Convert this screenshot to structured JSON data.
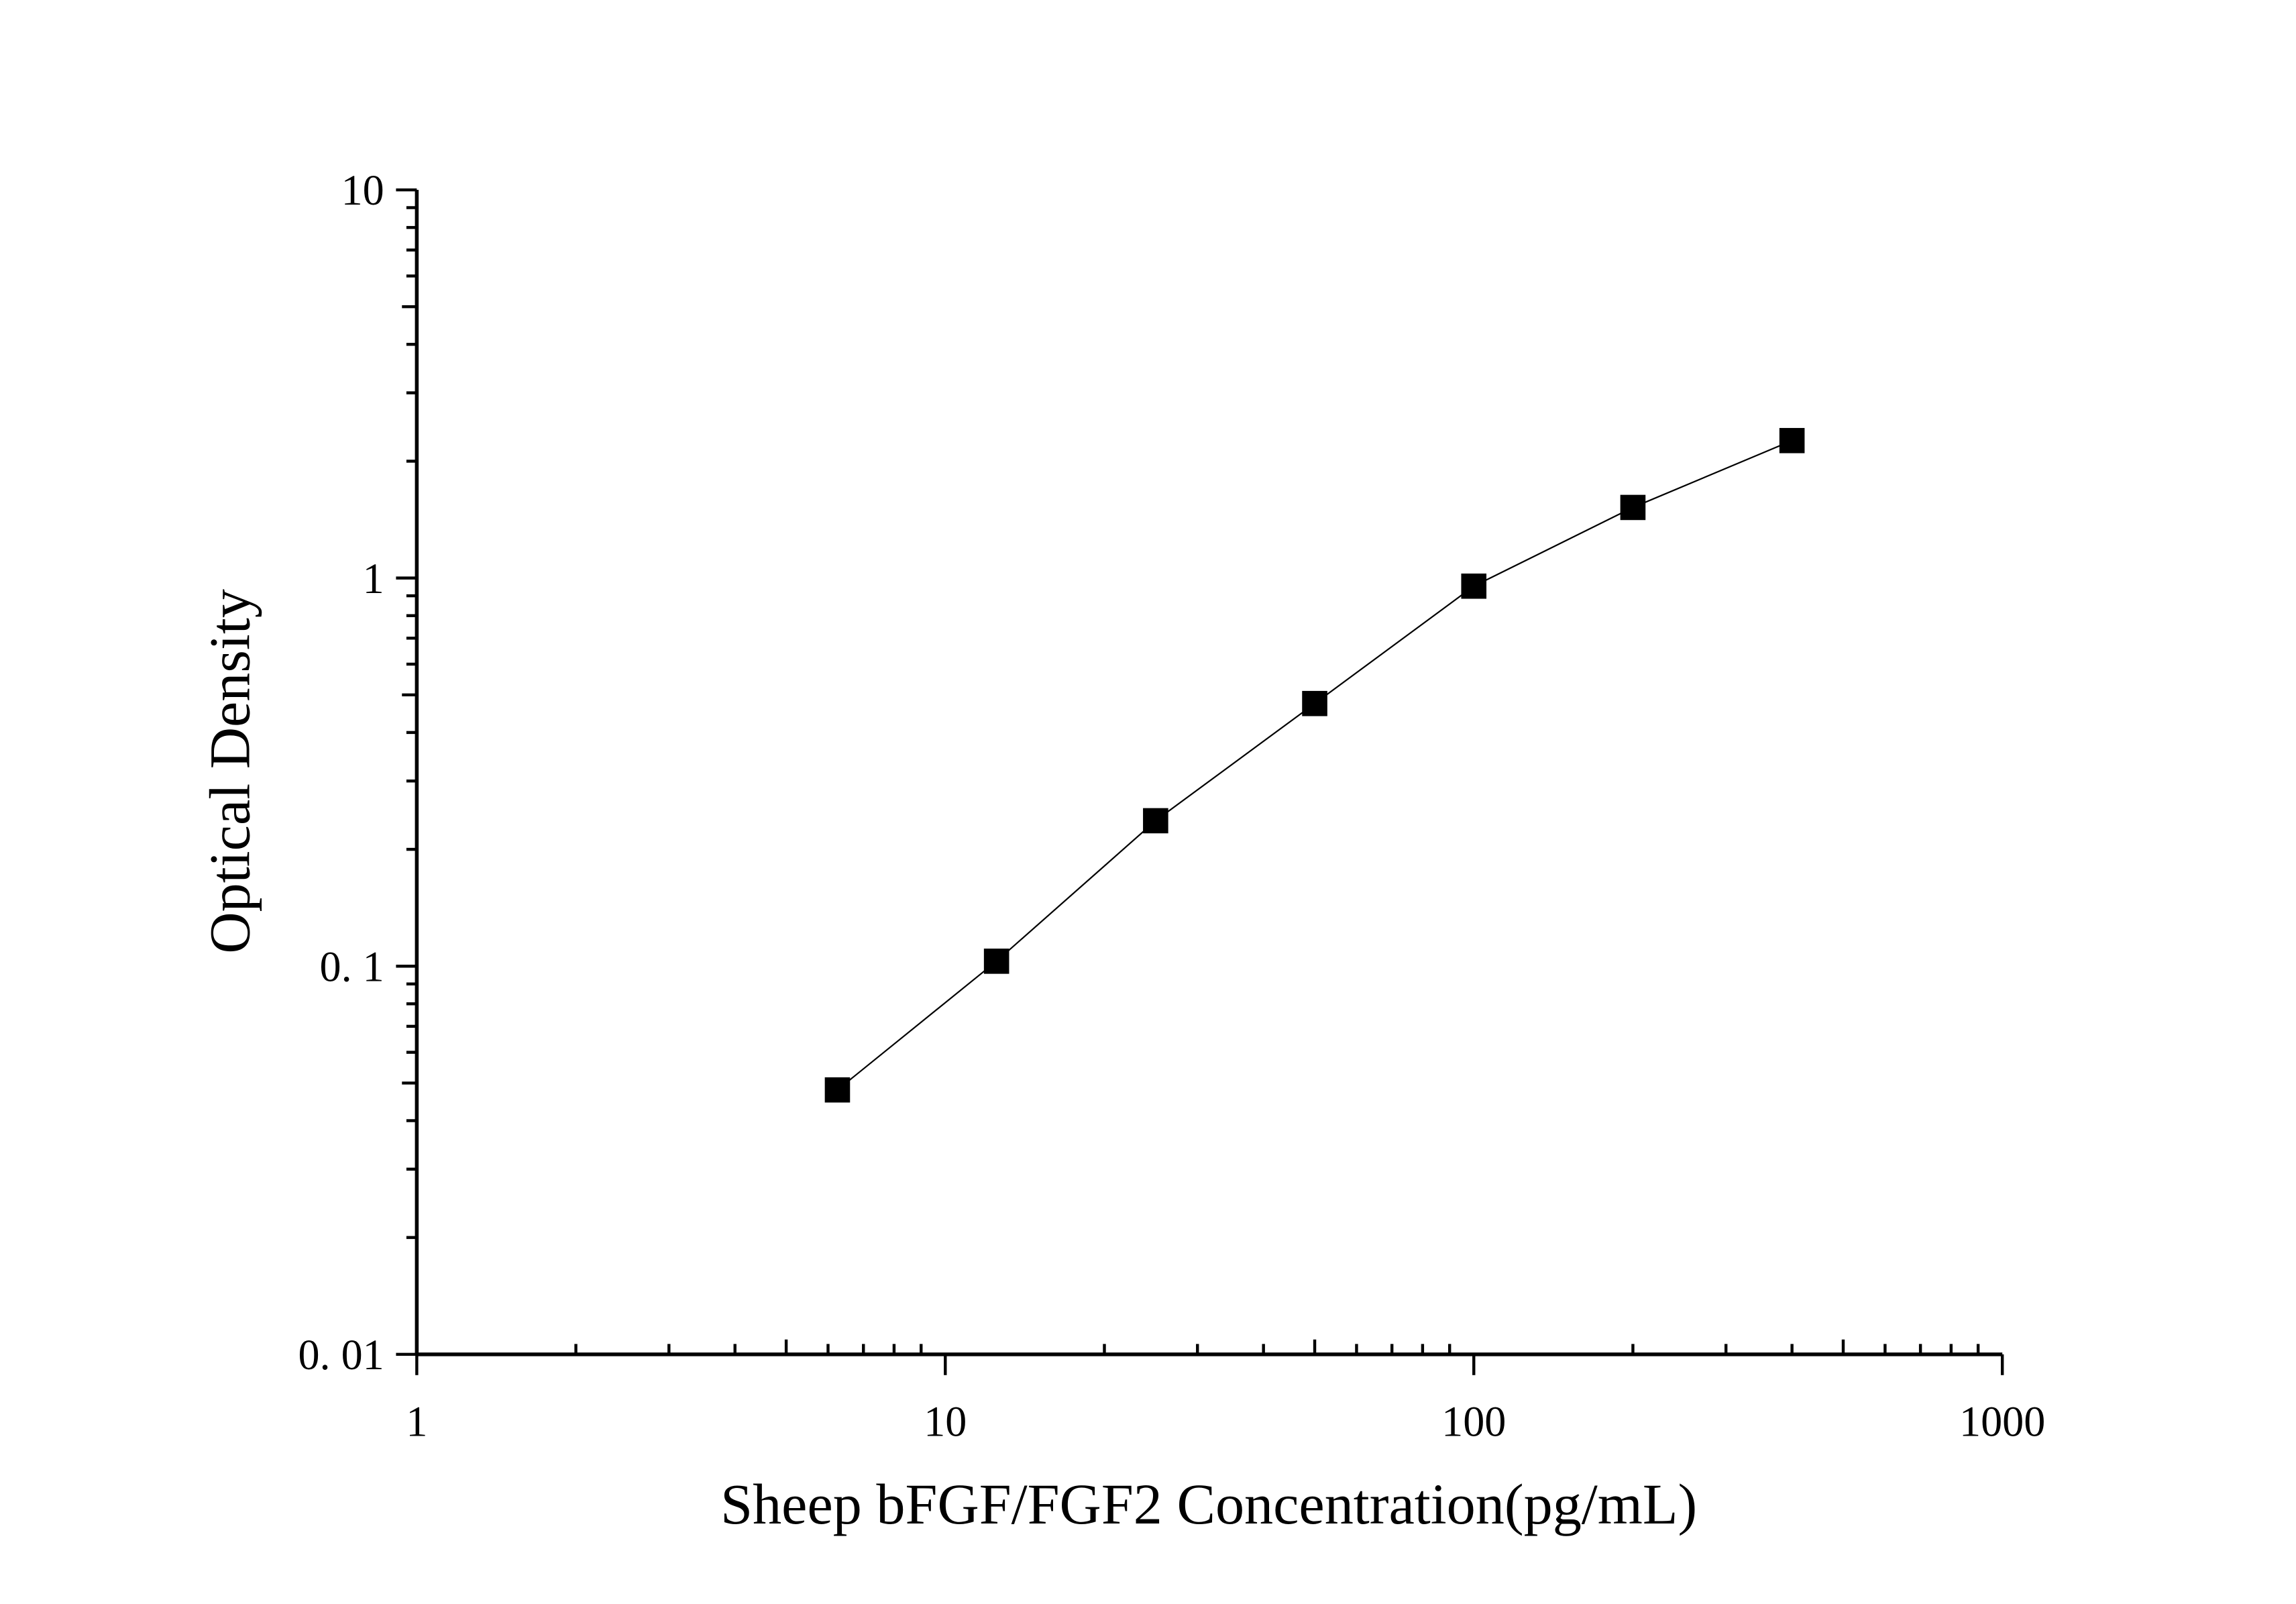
{
  "chart_data": {
    "type": "line",
    "xlabel": "Sheep bFGF/FGF2 Concentration(pg/mL)",
    "ylabel": "Optical Density",
    "x": [
      6.25,
      12.5,
      25,
      50,
      100,
      200,
      400
    ],
    "series": [
      {
        "color": "#000000",
        "values": [
          0.048,
          0.103,
          0.237,
          0.475,
          0.953,
          1.52,
          2.26
        ]
      }
    ],
    "xlim": [
      1,
      1000
    ],
    "xticks": [
      1,
      10,
      100,
      1000
    ],
    "ylim": [
      0.01,
      10
    ],
    "yticks": [
      {
        "value": 0.01,
        "label": "0. 01"
      },
      {
        "value": 0.1,
        "label": "0. 1"
      },
      1,
      10
    ],
    "xscale": "log",
    "yscale": "log",
    "marker": "square",
    "grid": false
  }
}
